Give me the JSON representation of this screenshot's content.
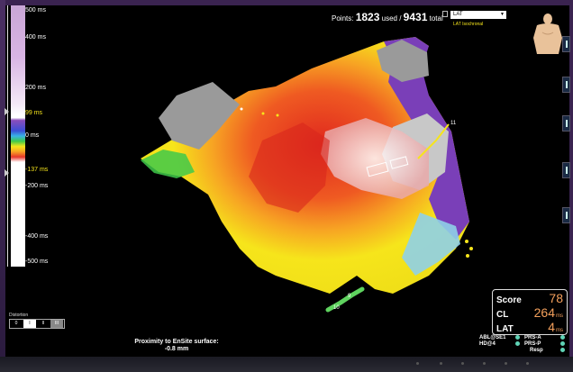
{
  "header": {
    "points_label": "Points:",
    "points_used": "1823",
    "points_used_suffix": "used /",
    "points_total": "9431",
    "points_total_suffix": "total",
    "map_type": "LAT",
    "map_mode": "LAT Isochronal"
  },
  "colorbar": {
    "ticks": [
      {
        "label": "500 ms",
        "highlight": false
      },
      {
        "label": "400 ms",
        "highlight": false
      },
      {
        "label": "200 ms",
        "highlight": false
      },
      {
        "label": "99 ms",
        "highlight": true
      },
      {
        "label": "0 ms",
        "highlight": false
      },
      {
        "label": "-137 ms",
        "highlight": true
      },
      {
        "label": "-200 ms",
        "highlight": false
      },
      {
        "label": "-400 ms",
        "highlight": false
      },
      {
        "label": "-500 ms",
        "highlight": false
      }
    ]
  },
  "distortion": {
    "label": "Distortion",
    "segments": [
      "0",
      "I",
      "II",
      "III"
    ]
  },
  "proximity": {
    "label": "Proximity to EnSite surface:",
    "value": "-0.8 mm"
  },
  "score_box": {
    "score_label": "Score",
    "score_value": "78",
    "cl_label": "CL",
    "cl_value": "264",
    "cl_unit": "ms",
    "lat_label": "LAT",
    "lat_value": "4",
    "lat_unit": "ms"
  },
  "catheter_labels": {
    "tip1": "11",
    "tip2": "10",
    "tip3": "9"
  },
  "legend": {
    "abl": "ABL@SE1",
    "hd": "HD@4",
    "prs_a": "PRS-A",
    "prs_p": "PRS-P",
    "resp": "Resp"
  },
  "colors": {
    "accent_orange": "#f4a05c",
    "legend_green": "#5fd3b6",
    "tick_yellow": "#f6e51b"
  }
}
